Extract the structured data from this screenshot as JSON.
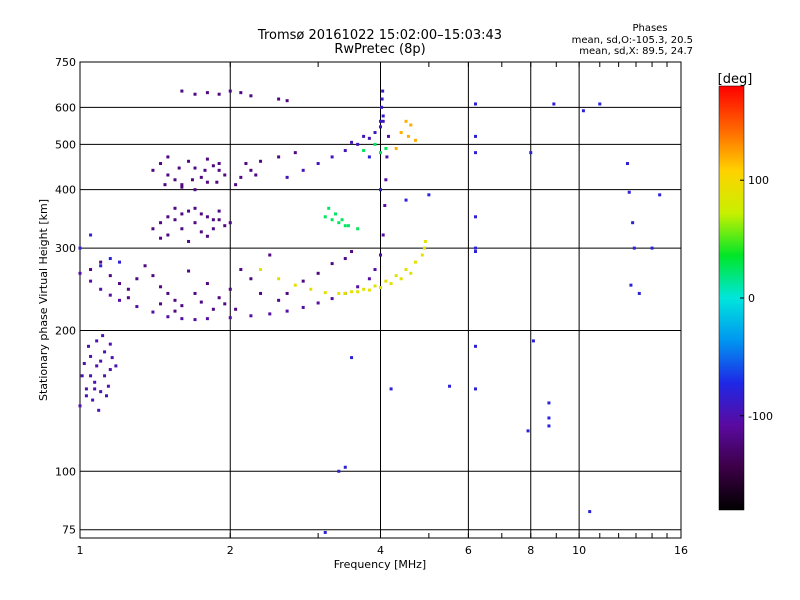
{
  "chart_data": {
    "type": "scatter",
    "title": "Tromsø 20161022 15:02:00–15:03:43",
    "subtitle": "RwPretec (8p)",
    "xlabel": "Frequency [MHz]",
    "ylabel": "Stationary phase Virtual Height [km]",
    "x_scale": "log",
    "y_scale": "log",
    "xlim": [
      1,
      16
    ],
    "ylim": [
      72,
      750
    ],
    "x_ticks": [
      1,
      2,
      4,
      6,
      8,
      10,
      16
    ],
    "x_tick_labels": [
      "1",
      "2",
      "4",
      "6",
      "8",
      "10",
      "16"
    ],
    "y_ticks": [
      75,
      100,
      200,
      300,
      400,
      500,
      600,
      750
    ],
    "y_tick_labels": [
      "75",
      "100",
      "200",
      "300",
      "400",
      "500",
      "600",
      "750"
    ],
    "grid": true,
    "phase_info": {
      "heading": "Phases",
      "o_line": "mean, sd,O:-105.3, 20.5",
      "x_line": "mean, sd,X: 89.5, 24.7"
    },
    "colorbar": {
      "label": "[deg]",
      "range": [
        -180,
        180
      ],
      "ticks": [
        100,
        0,
        -100
      ],
      "tick_labels": [
        "100",
        "0",
        "-100"
      ],
      "colors": [
        "#000000",
        "#3c0046",
        "#5a0aa0",
        "#1e28e6",
        "#0096f0",
        "#00e6dc",
        "#00e628",
        "#c8f000",
        "#ffd200",
        "#ff6400",
        "#ff0000"
      ]
    },
    "series": [
      {
        "values": [
          [
            1.0,
            138
          ],
          [
            1.03,
            150
          ],
          [
            1.05,
            160
          ],
          [
            1.07,
            155
          ],
          [
            1.08,
            168
          ],
          [
            1.1,
            172
          ],
          [
            1.12,
            160
          ],
          [
            1.15,
            165
          ],
          [
            1.04,
            185
          ],
          [
            1.08,
            190
          ],
          [
            1.12,
            180
          ],
          [
            1.06,
            142
          ],
          [
            1.1,
            148
          ],
          [
            1.14,
            152
          ],
          [
            1.02,
            170
          ],
          [
            1.16,
            175
          ],
          [
            1.09,
            135
          ],
          [
            1.13,
            145
          ],
          [
            1.01,
            160
          ],
          [
            1.11,
            195
          ],
          [
            1.15,
            187
          ],
          [
            1.05,
            176
          ],
          [
            1.18,
            168
          ],
          [
            1.07,
            150
          ],
          [
            1.03,
            145
          ]
        ],
        "phase": -100
      },
      {
        "values": [
          [
            1.0,
            265
          ],
          [
            1.05,
            255
          ],
          [
            1.1,
            245
          ],
          [
            1.15,
            238
          ],
          [
            1.2,
            232
          ],
          [
            1.3,
            225
          ],
          [
            1.4,
            219
          ],
          [
            1.5,
            214
          ],
          [
            1.6,
            212
          ],
          [
            1.7,
            211
          ],
          [
            1.8,
            212
          ],
          [
            2.0,
            213
          ],
          [
            2.2,
            215
          ],
          [
            2.4,
            217
          ],
          [
            2.6,
            220
          ],
          [
            2.8,
            224
          ],
          [
            3.0,
            229
          ],
          [
            3.2,
            234
          ],
          [
            3.4,
            240
          ],
          [
            3.6,
            248
          ],
          [
            3.8,
            258
          ],
          [
            3.9,
            270
          ],
          [
            4.0,
            290
          ],
          [
            4.05,
            320
          ],
          [
            4.08,
            370
          ],
          [
            4.1,
            420
          ],
          [
            4.12,
            470
          ],
          [
            4.15,
            520
          ]
        ],
        "phase": -105
      },
      {
        "values": [
          [
            2.3,
            270
          ],
          [
            2.5,
            258
          ],
          [
            2.7,
            250
          ],
          [
            2.9,
            245
          ],
          [
            3.1,
            241
          ],
          [
            3.3,
            240
          ],
          [
            3.5,
            242
          ],
          [
            3.7,
            245
          ],
          [
            3.9,
            249
          ],
          [
            4.1,
            255
          ],
          [
            4.3,
            262
          ],
          [
            4.5,
            270
          ],
          [
            4.7,
            280
          ],
          [
            4.85,
            290
          ],
          [
            4.9,
            300
          ],
          [
            4.92,
            310
          ],
          [
            4.6,
            265
          ],
          [
            4.4,
            258
          ],
          [
            4.2,
            252
          ],
          [
            4.0,
            247
          ],
          [
            3.8,
            244
          ],
          [
            3.6,
            242
          ],
          [
            3.4,
            240
          ]
        ],
        "phase": 90
      },
      {
        "values": [
          [
            1.05,
            270
          ],
          [
            1.1,
            280
          ],
          [
            1.15,
            262
          ],
          [
            1.2,
            252
          ],
          [
            1.25,
            245
          ],
          [
            1.3,
            258
          ],
          [
            1.4,
            262
          ],
          [
            1.45,
            248
          ],
          [
            1.5,
            240
          ],
          [
            1.55,
            232
          ],
          [
            1.6,
            226
          ],
          [
            1.7,
            240
          ],
          [
            1.8,
            252
          ],
          [
            1.9,
            235
          ],
          [
            2.0,
            245
          ],
          [
            2.1,
            270
          ],
          [
            2.2,
            258
          ],
          [
            2.3,
            240
          ],
          [
            1.35,
            275
          ],
          [
            1.65,
            268
          ],
          [
            1.75,
            230
          ],
          [
            1.85,
            222
          ],
          [
            2.4,
            290
          ],
          [
            1.25,
            235
          ],
          [
            1.45,
            228
          ],
          [
            1.55,
            220
          ],
          [
            1.95,
            228
          ],
          [
            2.05,
            222
          ],
          [
            2.5,
            232
          ],
          [
            2.6,
            240
          ],
          [
            2.8,
            255
          ],
          [
            3.0,
            265
          ],
          [
            3.2,
            278
          ],
          [
            3.4,
            285
          ],
          [
            3.5,
            295
          ]
        ],
        "phase": -120
      },
      {
        "values": [
          [
            1.4,
            330
          ],
          [
            1.45,
            340
          ],
          [
            1.5,
            350
          ],
          [
            1.55,
            345
          ],
          [
            1.6,
            330
          ],
          [
            1.65,
            360
          ],
          [
            1.7,
            340
          ],
          [
            1.75,
            325
          ],
          [
            1.8,
            350
          ],
          [
            1.85,
            330
          ],
          [
            1.9,
            345
          ],
          [
            1.95,
            335
          ],
          [
            2.0,
            340
          ],
          [
            1.5,
            320
          ],
          [
            1.6,
            355
          ],
          [
            1.7,
            365
          ],
          [
            1.8,
            318
          ],
          [
            1.9,
            360
          ],
          [
            1.45,
            315
          ],
          [
            1.55,
            365
          ],
          [
            1.65,
            310
          ],
          [
            1.75,
            355
          ],
          [
            1.85,
            345
          ]
        ],
        "phase": -120
      },
      {
        "values": [
          [
            1.4,
            440
          ],
          [
            1.45,
            455
          ],
          [
            1.5,
            430
          ],
          [
            1.55,
            420
          ],
          [
            1.6,
            410
          ],
          [
            1.65,
            460
          ],
          [
            1.7,
            445
          ],
          [
            1.75,
            425
          ],
          [
            1.8,
            415
          ],
          [
            1.85,
            450
          ],
          [
            1.9,
            440
          ],
          [
            1.95,
            430
          ],
          [
            2.1,
            425
          ],
          [
            2.2,
            440
          ],
          [
            2.3,
            460
          ],
          [
            2.5,
            470
          ],
          [
            2.7,
            480
          ],
          [
            1.5,
            470
          ],
          [
            1.6,
            405
          ],
          [
            1.7,
            400
          ],
          [
            1.8,
            465
          ],
          [
            1.9,
            455
          ],
          [
            1.48,
            410
          ],
          [
            1.58,
            445
          ],
          [
            1.68,
            420
          ],
          [
            1.78,
            440
          ],
          [
            1.88,
            415
          ],
          [
            2.05,
            410
          ],
          [
            2.15,
            455
          ],
          [
            2.25,
            430
          ]
        ],
        "phase": -120
      },
      {
        "values": [
          [
            2.6,
            425
          ],
          [
            2.8,
            440
          ],
          [
            3.0,
            455
          ],
          [
            3.2,
            470
          ],
          [
            3.4,
            485
          ],
          [
            3.6,
            500
          ],
          [
            3.8,
            515
          ],
          [
            3.9,
            530
          ],
          [
            4.0,
            545
          ],
          [
            4.05,
            560
          ],
          [
            3.5,
            505
          ],
          [
            3.7,
            520
          ]
        ],
        "phase": -95
      },
      {
        "values": [
          [
            1.6,
            650
          ],
          [
            1.7,
            640
          ],
          [
            1.8,
            645
          ],
          [
            1.9,
            640
          ],
          [
            2.0,
            650
          ],
          [
            2.1,
            645
          ],
          [
            2.2,
            635
          ],
          [
            2.5,
            625
          ],
          [
            2.6,
            620
          ]
        ],
        "phase": -120
      },
      {
        "values": [
          [
            4.0,
            560
          ],
          [
            4.05,
            575
          ],
          [
            4.02,
            600
          ],
          [
            4.03,
            625
          ],
          [
            4.04,
            650
          ]
        ],
        "phase": -85
      },
      {
        "values": [
          [
            3.1,
            350
          ],
          [
            3.2,
            345
          ],
          [
            3.3,
            340
          ],
          [
            3.4,
            335
          ],
          [
            3.15,
            365
          ],
          [
            3.25,
            355
          ],
          [
            3.35,
            345
          ],
          [
            3.45,
            335
          ],
          [
            3.6,
            330
          ],
          [
            3.9,
            500
          ],
          [
            4.0,
            480
          ],
          [
            4.1,
            490
          ],
          [
            3.7,
            485
          ]
        ],
        "phase": 25
      },
      {
        "values": [
          [
            4.5,
            560
          ],
          [
            4.6,
            550
          ],
          [
            4.4,
            530
          ],
          [
            4.3,
            490
          ],
          [
            4.7,
            510
          ],
          [
            4.55,
            520
          ]
        ],
        "phase": 120
      },
      {
        "values": [
          [
            6.2,
            610
          ],
          [
            6.2,
            520
          ],
          [
            6.2,
            480
          ],
          [
            6.2,
            350
          ],
          [
            6.2,
            300
          ],
          [
            6.2,
            295
          ],
          [
            6.2,
            185
          ],
          [
            6.2,
            150
          ],
          [
            8.0,
            480
          ],
          [
            8.1,
            190
          ],
          [
            8.9,
            610
          ],
          [
            10.2,
            590
          ],
          [
            11.0,
            610
          ],
          [
            12.5,
            455
          ],
          [
            12.6,
            395
          ],
          [
            12.8,
            340
          ],
          [
            12.9,
            300
          ],
          [
            12.7,
            250
          ],
          [
            13.2,
            240
          ],
          [
            14.0,
            300
          ],
          [
            14.5,
            390
          ],
          [
            8.7,
            140
          ],
          [
            8.7,
            130
          ],
          [
            8.7,
            125
          ],
          [
            7.9,
            122
          ],
          [
            10.5,
            82
          ],
          [
            3.8,
            470
          ],
          [
            4.0,
            400
          ],
          [
            4.5,
            380
          ],
          [
            5.0,
            390
          ],
          [
            3.5,
            175
          ],
          [
            4.2,
            150
          ],
          [
            5.5,
            152
          ],
          [
            3.3,
            100
          ],
          [
            3.4,
            102
          ],
          [
            3.1,
            74
          ],
          [
            1.15,
            285
          ],
          [
            1.2,
            280
          ],
          [
            1.1,
            275
          ],
          [
            1.05,
            320
          ],
          [
            1.0,
            300
          ]
        ],
        "phase": -80
      }
    ]
  }
}
